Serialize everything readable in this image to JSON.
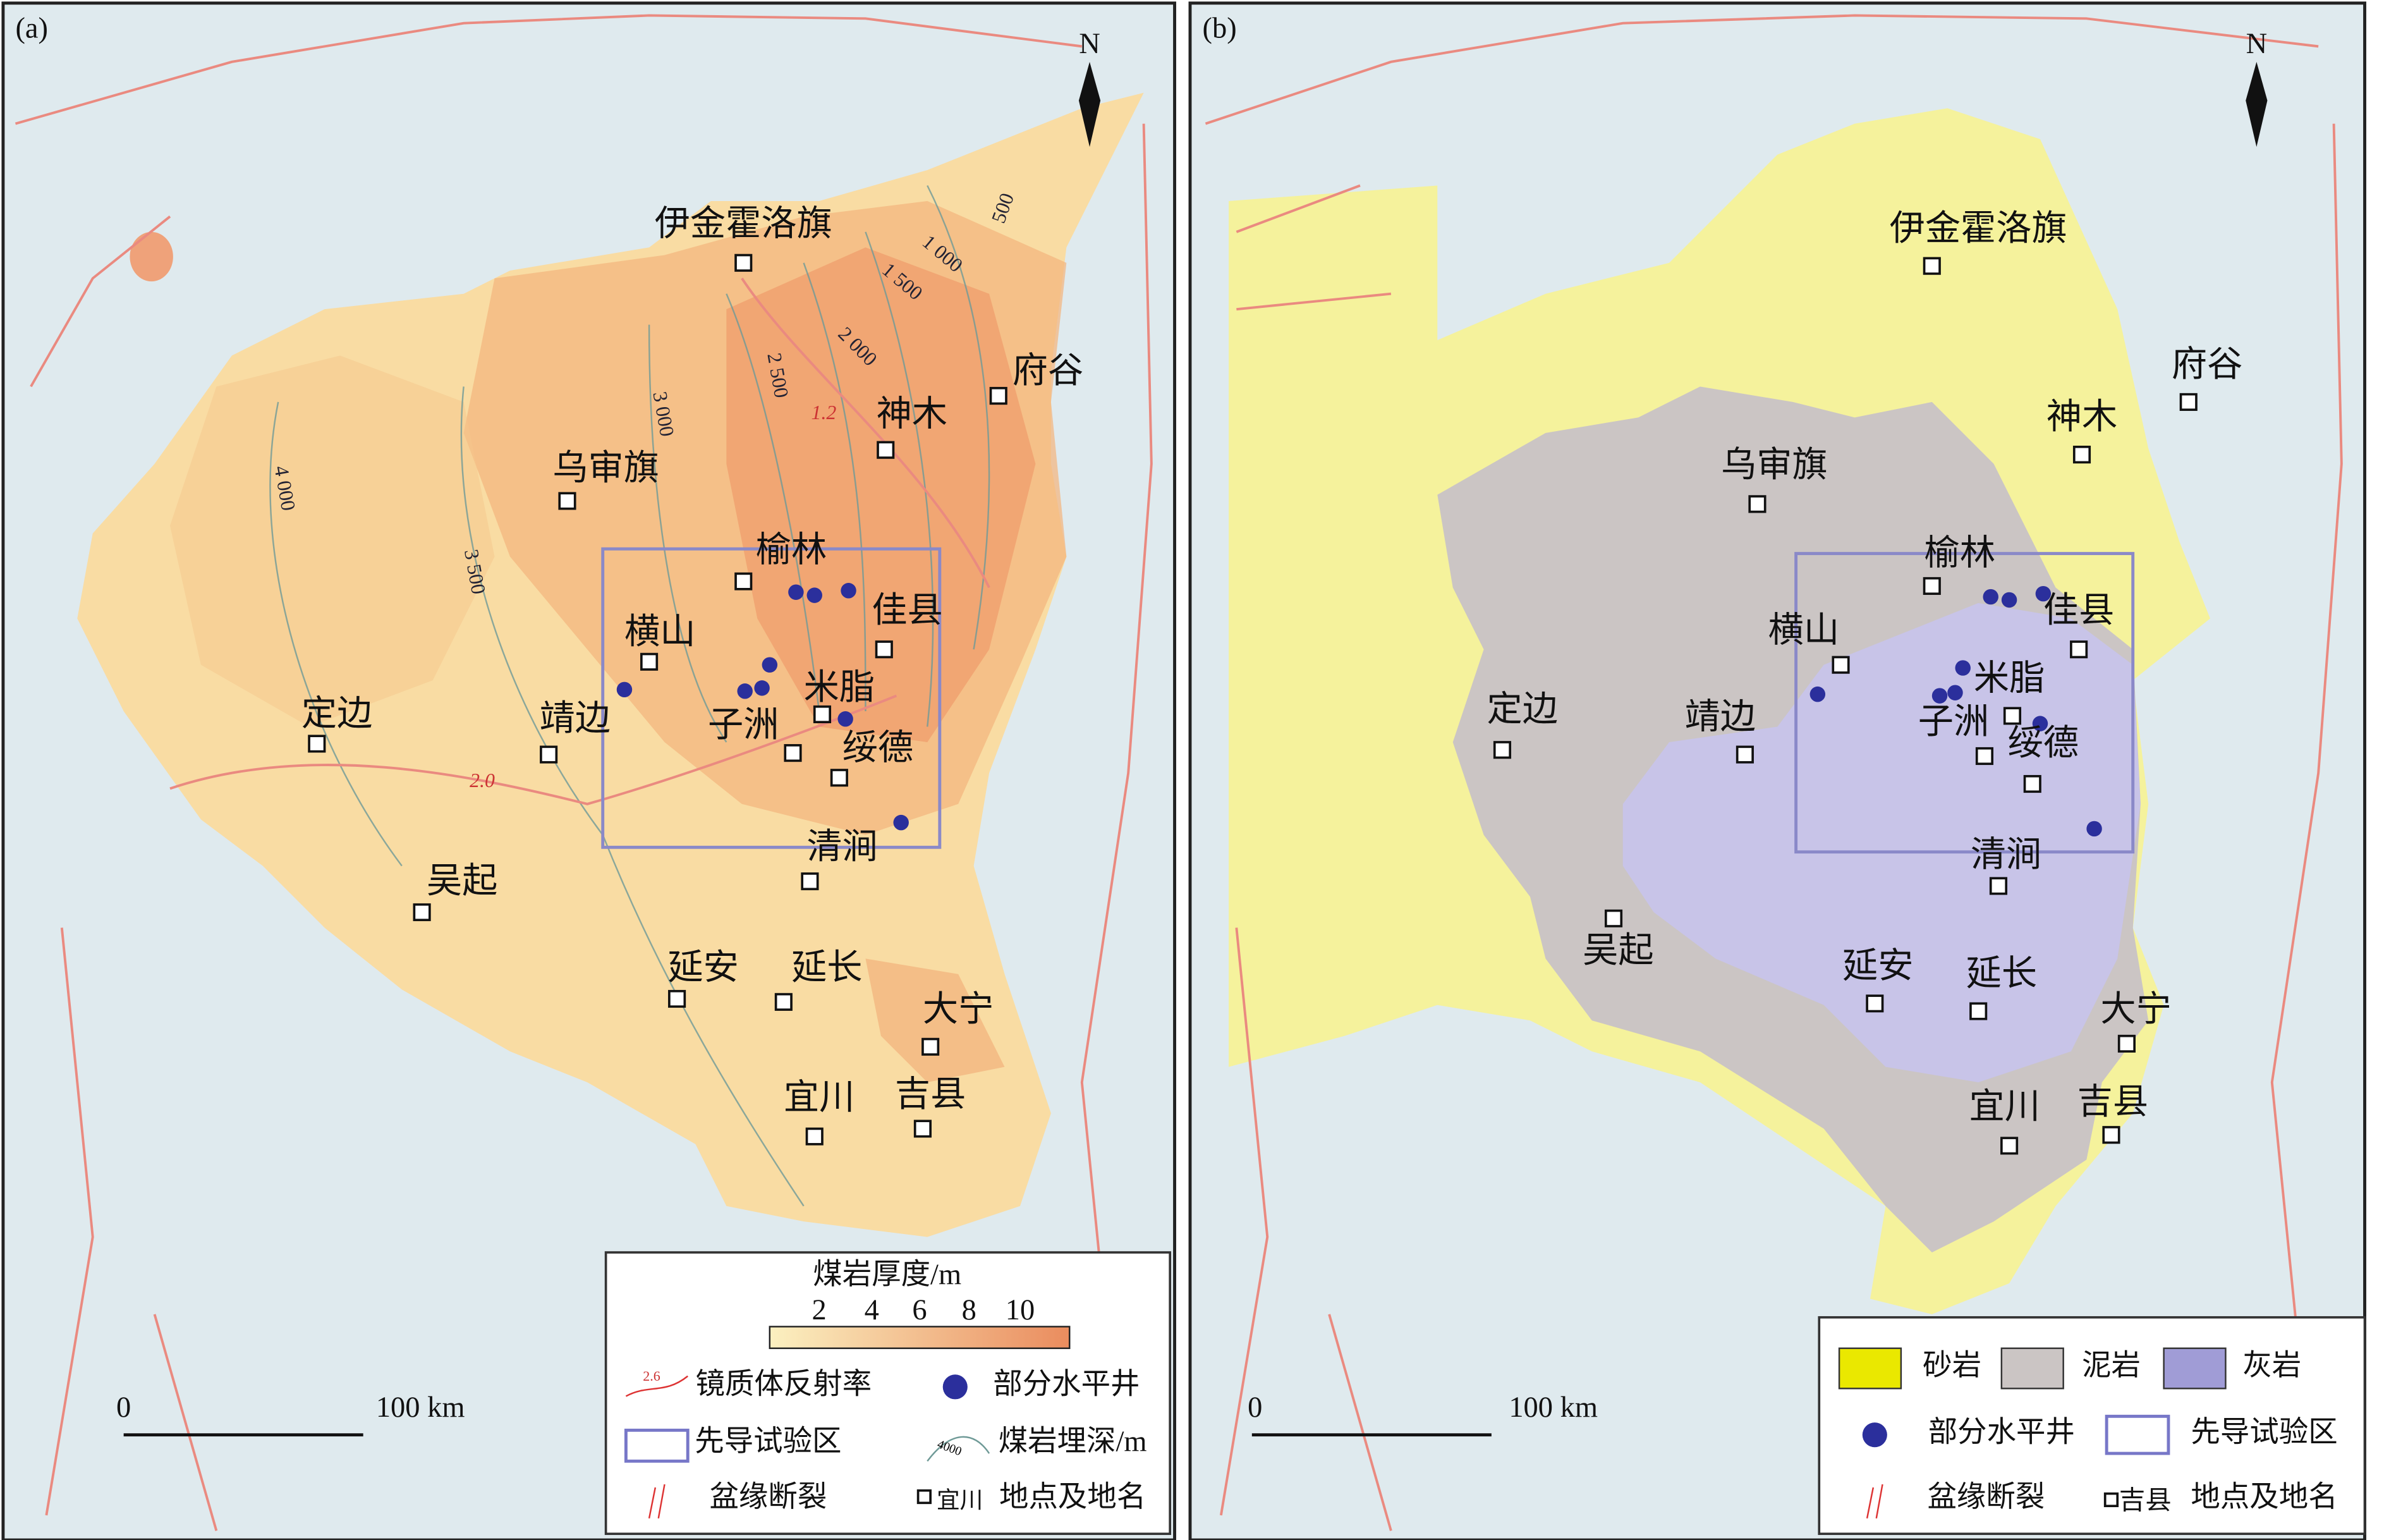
{
  "panels": [
    {
      "label": "(a)",
      "north": "N",
      "cities": [
        "伊金霍洛旗",
        "府谷",
        "神木",
        "乌审旗",
        "榆林",
        "佳县",
        "横山",
        "米脂",
        "靖边",
        "定边",
        "子洲",
        "绥德",
        "清涧",
        "吴起",
        "延安",
        "延长",
        "大宁",
        "宜川",
        "吉县"
      ],
      "contours": [
        "500",
        "1 000",
        "1 500",
        "2 000",
        "2 500",
        "3 000",
        "3 500",
        "4 000"
      ],
      "reflectance": [
        "1.2",
        "2.0"
      ],
      "scale": {
        "zero": "0",
        "length": "100 km"
      },
      "legend": {
        "title": "煤岩厚度/m",
        "ticks": [
          "2",
          "4",
          "6",
          "8",
          "10"
        ],
        "reflectance_sample": "2.6",
        "reflectance": "镜质体反射率",
        "wells": "部分水平井",
        "pilot": "先导试验区",
        "depth_sample": "4000",
        "depth": "煤岩埋深/m",
        "fault": "盆缘断裂",
        "place_sample": "宜川",
        "place": "地点及地名"
      }
    },
    {
      "label": "(b)",
      "north": "N",
      "cities": [
        "伊金霍洛旗",
        "府谷",
        "神木",
        "乌审旗",
        "榆林",
        "佳县",
        "横山",
        "米脂",
        "定边",
        "靖边",
        "子洲",
        "绥德",
        "清涧",
        "吴起",
        "延安",
        "延长",
        "大宁",
        "宜川",
        "吉县"
      ],
      "scale": {
        "zero": "0",
        "length": "100 km"
      },
      "legend": {
        "sandstone": "砂岩",
        "mudstone": "泥岩",
        "limestone": "灰岩",
        "wells": "部分水平井",
        "pilot": "先导试验区",
        "fault": "盆缘断裂",
        "place_sample": "吉县",
        "place": "地点及地名"
      }
    }
  ]
}
